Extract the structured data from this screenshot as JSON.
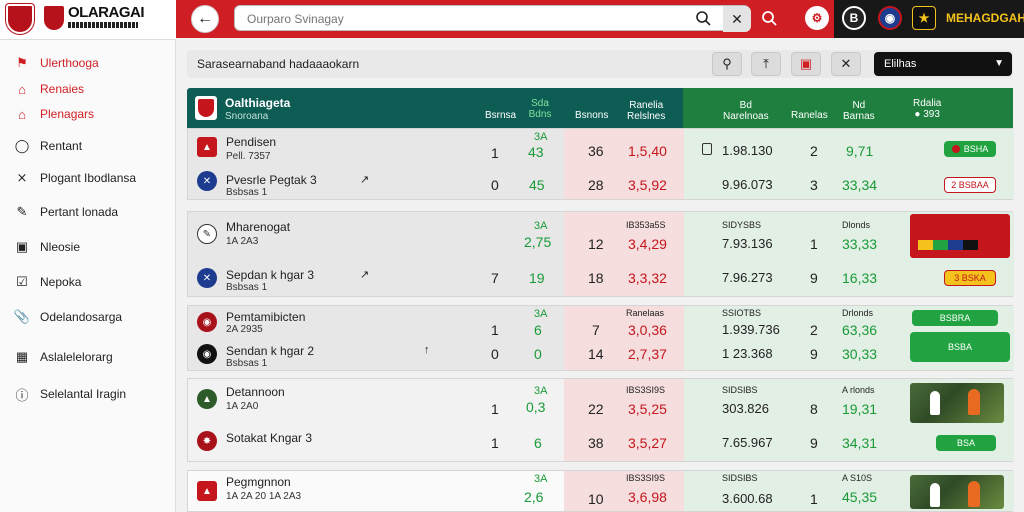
{
  "brand": {
    "title": "OLARAGAI",
    "top_right": "MEHAGDGAH"
  },
  "search": {
    "placeholder": "Ourparo Svinagay"
  },
  "sidebar": {
    "items": [
      {
        "label": "Ulerthooga",
        "icon": "flag-icon",
        "active": true
      },
      {
        "label": "Renaies",
        "icon": "home-icon",
        "active": true
      },
      {
        "label": "Plenagars",
        "icon": "home-icon",
        "active": true
      },
      {
        "label": "Rentant",
        "icon": "clock-icon",
        "active": false
      },
      {
        "label": "Plogant Ibodlansa",
        "icon": "shuffle-icon",
        "active": false
      },
      {
        "label": "Pertant lonada",
        "icon": "edit-icon",
        "active": false
      },
      {
        "label": "Nleosie",
        "icon": "monitor-icon",
        "active": false
      },
      {
        "label": "Nepoka",
        "icon": "checklist-icon",
        "active": false
      },
      {
        "label": "Odelandosarga",
        "icon": "paperclip-icon",
        "active": false
      },
      {
        "label": "Aslalelelorarg",
        "icon": "building-icon",
        "active": false
      },
      {
        "label": "Selelantal Iragin",
        "icon": "info-icon",
        "active": false
      }
    ]
  },
  "toolbar": {
    "title": "Sarasearnaband hadaaaokarn",
    "select_label": "Elilhas"
  },
  "table_head": {
    "title": "Oalthiageta",
    "subtitle": "Snoroana",
    "cols": [
      "Bsrnsa",
      "Sda\nBdns",
      "Bsnons",
      "Ranelia\nRelslnes",
      "Bd\nNarelnoas",
      "Ranelas",
      "Nd\nBarnas",
      "Rdalia\n● 393"
    ]
  },
  "groups": [
    {
      "rows": [
        {
          "name": "Pendisen",
          "sub": "Pell. 7357",
          "v1": "1",
          "v2": "43",
          "v2top": "3A",
          "v3": "36",
          "v4": "1,5,40",
          "v5": "1.98.130",
          "v6": "2",
          "v7": "9,71",
          "badge": "BSHA"
        },
        {
          "name": "Pvesrle Pegtak 3",
          "sub": "Bsbsas 1",
          "v1": "0",
          "v2": "45",
          "v2top": "",
          "v3": "28",
          "v4": "3,5,92",
          "v5": "9.96.073",
          "v6": "3",
          "v7": "33,34",
          "badge": "2 BSBAA"
        }
      ]
    },
    {
      "rows": [
        {
          "name": "Mharenogat",
          "sub": "1A 2A3",
          "v1": "",
          "v2": "2,75",
          "v2top": "3A",
          "v3": "12",
          "v4": "3,4,29",
          "v4top": "IB353a5S",
          "v5": "7.93.136",
          "v5top": "SIDYSBS",
          "v6": "1",
          "v7": "33,33",
          "v7top": "Dlonds",
          "badge": "3 BSKA"
        },
        {
          "name": "Sepdan k hgar 3",
          "sub": "Bsbsas 1",
          "v1": "7",
          "v2": "19",
          "v2top": "",
          "v3": "18",
          "v4": "3,3,32",
          "v5": "7.96.273",
          "v6": "9",
          "v7": "16,33",
          "badge": ""
        }
      ]
    },
    {
      "rows": [
        {
          "name": "Pemtamibicten",
          "sub": "2A 2935",
          "v1": "1",
          "v2": "6",
          "v2top": "3A",
          "v3": "7",
          "v4": "3,0,36",
          "v4top": "Ranelaas",
          "v5": "1.939.736",
          "v5top": "SSIOTBS",
          "v6": "2",
          "v7": "63,36",
          "v7top": "Drlonds",
          "badge": "BSBRA"
        },
        {
          "name": "Sendan k hgar 2",
          "sub": "Bsbsas 1",
          "v1": "0",
          "v2": "0",
          "v2top": "",
          "v3": "14",
          "v4": "2,7,37",
          "v5": "1 23.368",
          "v6": "9",
          "v7": "30,33",
          "badge": "BSBA"
        }
      ]
    },
    {
      "rows": [
        {
          "name": "Detannoon",
          "sub": "1A 2A0",
          "v1": "1",
          "v2": "0,3",
          "v2top": "3A",
          "v3": "22",
          "v4": "3,5,25",
          "v4top": "IBS3SI9S",
          "v5": "303.826",
          "v5top": "SIDSIBS",
          "v6": "8",
          "v7": "19,31",
          "v7top": "A rlonds",
          "badge": ""
        },
        {
          "name": "Sotakat Kngar 3",
          "sub": "Bsbsas 1",
          "v1": "1",
          "v2": "6",
          "v2top": "",
          "v3": "38",
          "v4": "3,5,27",
          "v5": "7.65.967",
          "v6": "9",
          "v7": "34,31",
          "badge": "BSA"
        }
      ]
    },
    {
      "rows": [
        {
          "name": "Pegmgnnon",
          "sub": "1A 2A 20  1A 2A3",
          "v1": "",
          "v2": "2,6",
          "v2top": "3A",
          "v3": "10",
          "v4": "3,6,98",
          "v4top": "IBS3SI9S",
          "v5": "3.600.68",
          "v5top": "SIDSIBS",
          "v6": "1",
          "v7": "45,35",
          "v7top": "A S10S",
          "badge": ""
        }
      ]
    }
  ]
}
